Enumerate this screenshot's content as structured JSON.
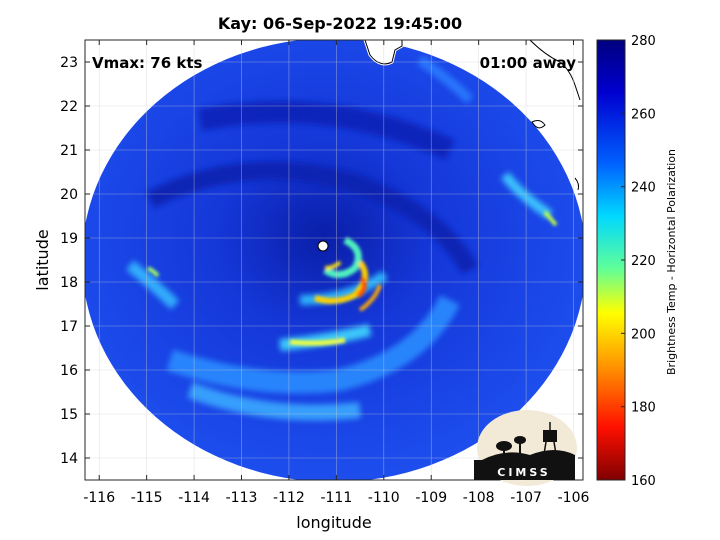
{
  "map": {
    "title": "Kay: 06-Sep-2022 19:45:00",
    "xlabel": "longitude",
    "ylabel": "latitude",
    "vmax_text": "Vmax: 76 kts",
    "time_offset_text": "01:00 away",
    "lon_ticks": [
      "-116",
      "-115",
      "-114",
      "-113",
      "-112",
      "-111",
      "-110",
      "-109",
      "-108",
      "-107",
      "-106"
    ],
    "lat_ticks": [
      "23",
      "22",
      "21",
      "20",
      "19",
      "18",
      "17",
      "16",
      "15",
      "14"
    ],
    "lon_range": [
      -116.3,
      -105.8
    ],
    "lat_range": [
      13.5,
      23.5
    ],
    "grid": true,
    "storm_center": {
      "lon": -110.9,
      "lat": 18.85
    },
    "logo_text": "CIMSS"
  },
  "colorbar": {
    "label": "Brightness Temp - Horizontal Polarization",
    "ticks": [
      "280",
      "260",
      "240",
      "220",
      "200",
      "180",
      "160"
    ],
    "range": [
      160,
      280
    ],
    "colormap": "jet",
    "colors": {
      "low": "#7f0000",
      "mid_low": "#ff3000",
      "mid": "#ffff00",
      "mid_high": "#00ffff",
      "high": "#0000c0",
      "top": "#000080"
    }
  }
}
